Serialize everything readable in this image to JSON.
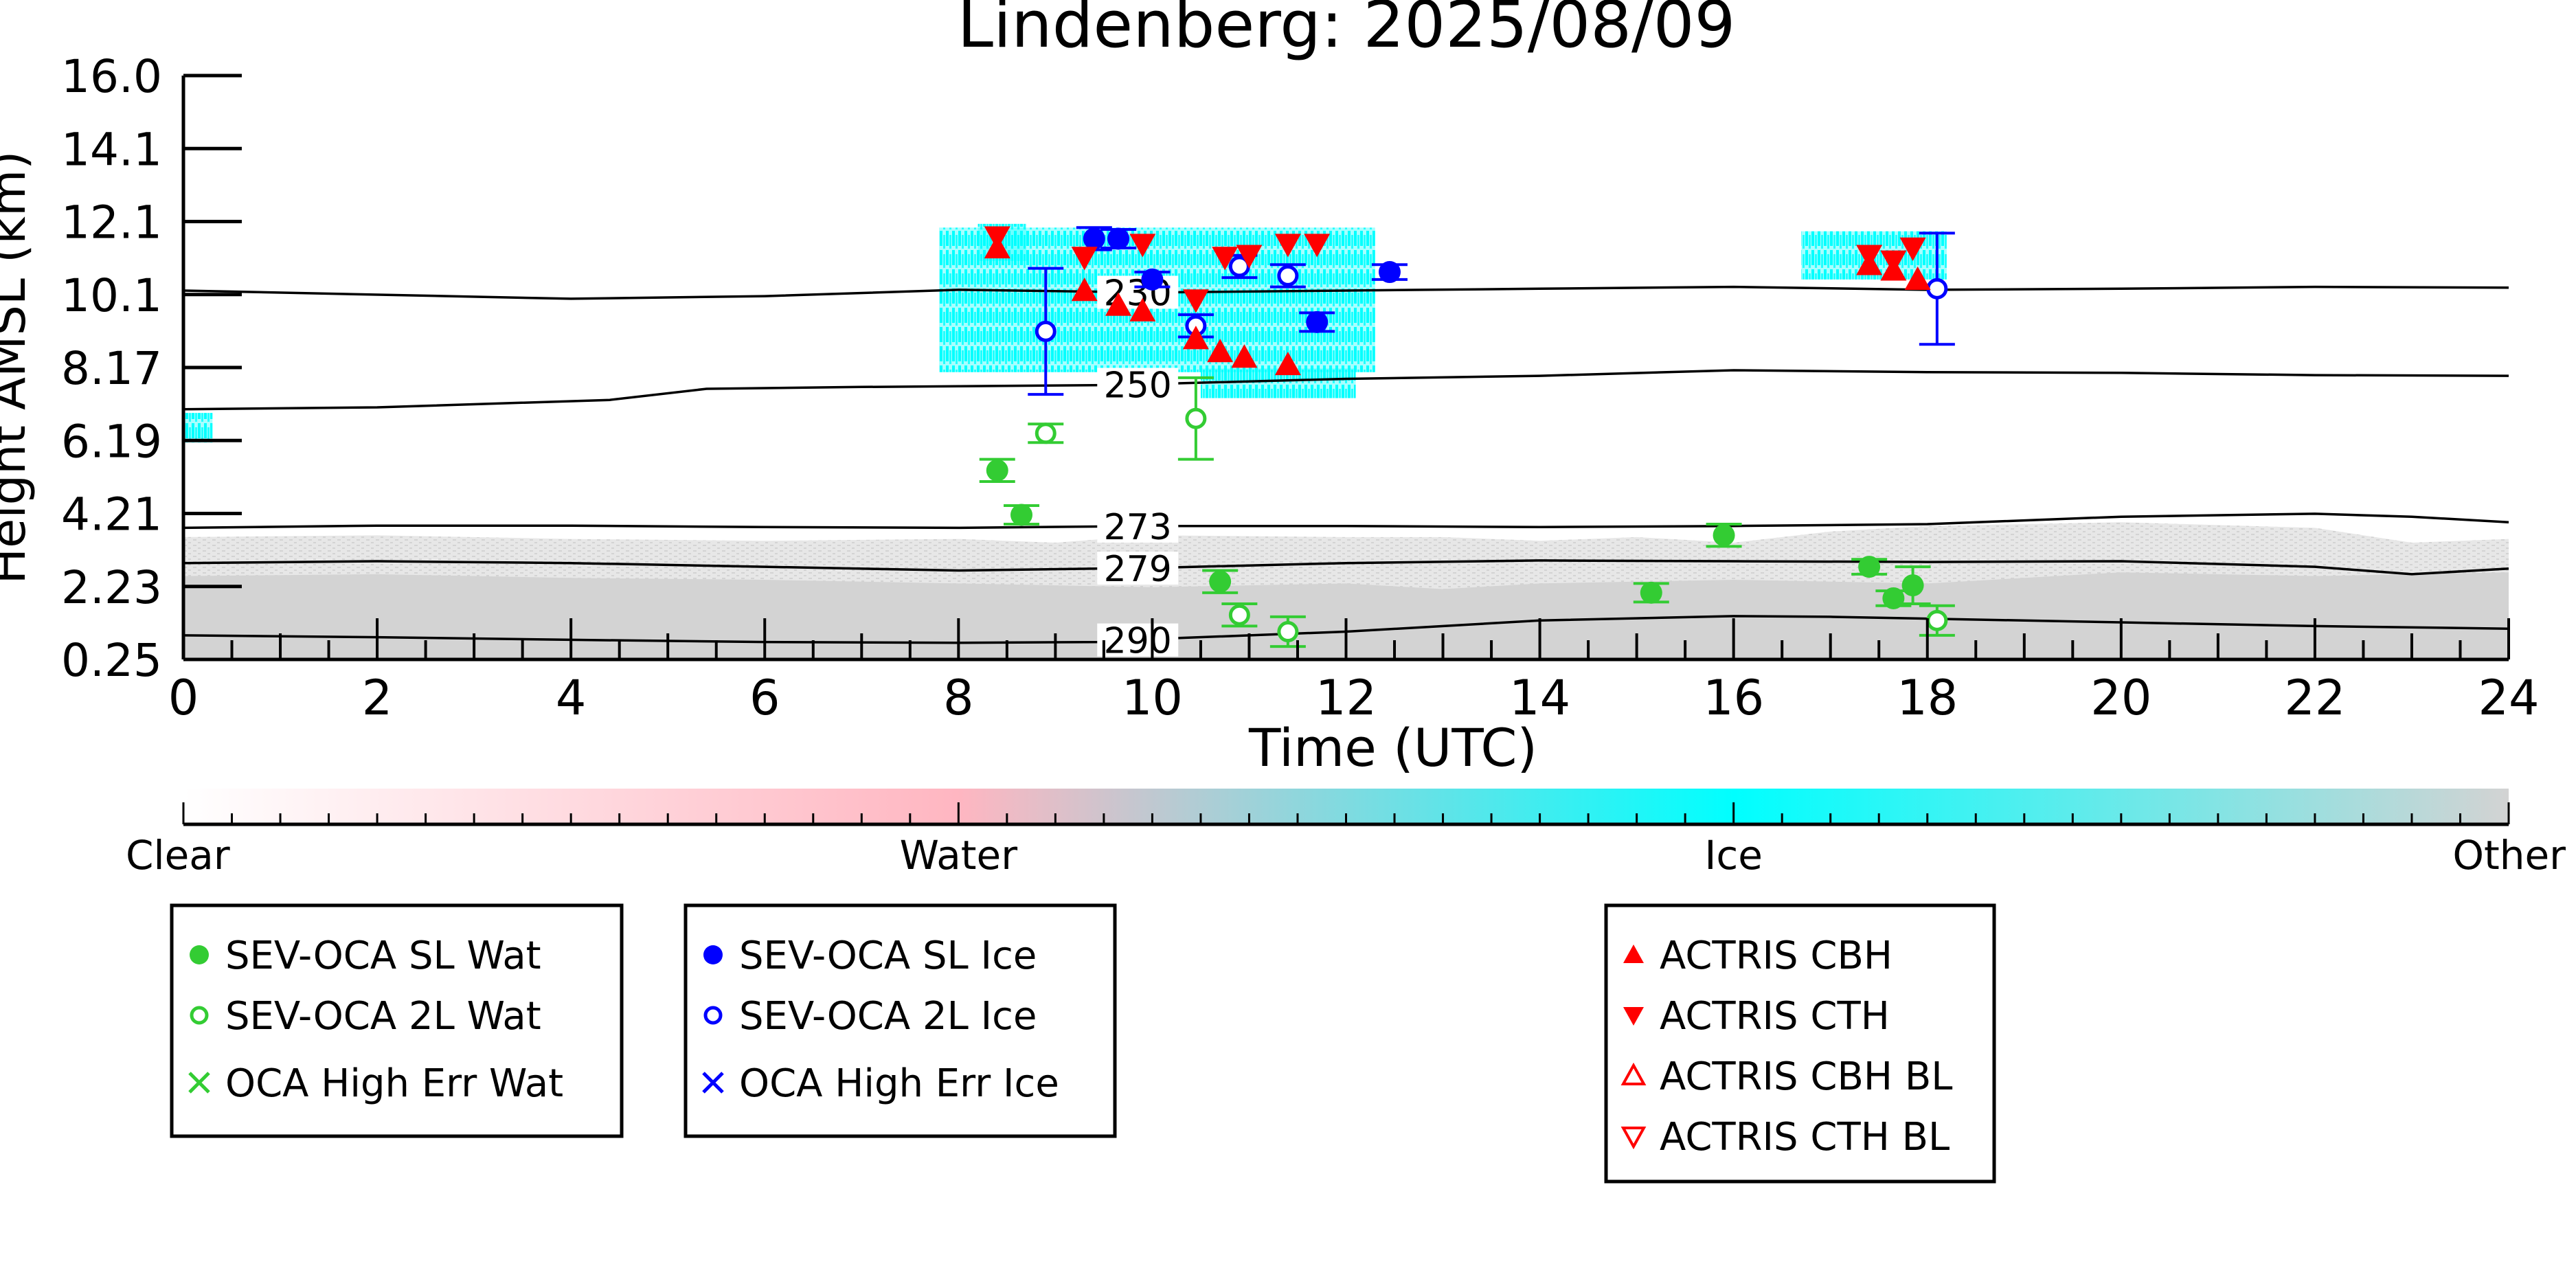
{
  "chart_data": {
    "type": "scatter",
    "title": "Lindenberg: 2025/08/09",
    "xlabel": "Time (UTC)",
    "ylabel": "Height AMSL (km)",
    "xlim": [
      0,
      24
    ],
    "ylim": [
      0.25,
      16.0
    ],
    "x_ticks": [
      0,
      2,
      4,
      6,
      8,
      10,
      12,
      14,
      16,
      18,
      20,
      22,
      24
    ],
    "y_ticks": [
      "0.25",
      "2.23",
      "4.21",
      "6.19",
      "8.17",
      "10.1",
      "12.1",
      "14.1",
      "16.0"
    ],
    "grid": false,
    "colorbar": {
      "labels": [
        "Clear",
        "Water",
        "Ice",
        "Other"
      ],
      "colors": [
        "#ffffff",
        "#ffb6c1",
        "#00ffff",
        "#d3d3d3"
      ]
    },
    "isotherms": [
      {
        "label": "230",
        "label_x": 9.85,
        "points": [
          [
            0,
            10.2
          ],
          [
            4,
            9.98
          ],
          [
            6,
            10.05
          ],
          [
            8,
            10.22
          ],
          [
            10,
            10.15
          ],
          [
            12,
            10.2
          ],
          [
            14,
            10.25
          ],
          [
            16,
            10.3
          ],
          [
            18,
            10.22
          ],
          [
            20,
            10.25
          ],
          [
            22,
            10.3
          ],
          [
            24,
            10.28
          ]
        ]
      },
      {
        "label": "250",
        "label_x": 9.85,
        "points": [
          [
            0,
            7.0
          ],
          [
            2,
            7.05
          ],
          [
            4.4,
            7.25
          ],
          [
            5.4,
            7.55
          ],
          [
            7,
            7.6
          ],
          [
            8,
            7.62
          ],
          [
            9.5,
            7.65
          ],
          [
            10,
            7.68
          ],
          [
            12,
            7.82
          ],
          [
            14,
            7.9
          ],
          [
            16,
            8.05
          ],
          [
            18,
            8.0
          ],
          [
            20,
            7.98
          ],
          [
            22,
            7.92
          ],
          [
            24,
            7.9
          ]
        ]
      },
      {
        "label": "273",
        "label_x": 9.85,
        "points": [
          [
            0,
            3.8
          ],
          [
            2,
            3.86
          ],
          [
            4,
            3.86
          ],
          [
            6,
            3.82
          ],
          [
            8,
            3.8
          ],
          [
            10,
            3.85
          ],
          [
            12,
            3.85
          ],
          [
            14,
            3.82
          ],
          [
            16,
            3.85
          ],
          [
            18,
            3.9
          ],
          [
            20,
            4.1
          ],
          [
            22,
            4.18
          ],
          [
            23,
            4.1
          ],
          [
            24,
            3.95
          ]
        ]
      },
      {
        "label": "279",
        "label_x": 9.85,
        "points": [
          [
            0,
            2.85
          ],
          [
            2,
            2.9
          ],
          [
            4,
            2.85
          ],
          [
            6,
            2.75
          ],
          [
            8,
            2.65
          ],
          [
            10,
            2.72
          ],
          [
            12,
            2.85
          ],
          [
            14,
            2.92
          ],
          [
            16,
            2.9
          ],
          [
            18,
            2.88
          ],
          [
            20,
            2.9
          ],
          [
            22,
            2.75
          ],
          [
            23,
            2.55
          ],
          [
            24,
            2.7
          ]
        ]
      },
      {
        "label": "290",
        "label_x": 9.85,
        "points": [
          [
            0,
            0.9
          ],
          [
            2,
            0.85
          ],
          [
            4,
            0.78
          ],
          [
            6,
            0.72
          ],
          [
            8,
            0.7
          ],
          [
            9.5,
            0.72
          ],
          [
            10,
            0.8
          ],
          [
            12,
            1.0
          ],
          [
            14,
            1.3
          ],
          [
            16,
            1.42
          ],
          [
            17,
            1.4
          ],
          [
            18,
            1.35
          ],
          [
            20,
            1.25
          ],
          [
            22,
            1.15
          ],
          [
            24,
            1.08
          ]
        ]
      }
    ],
    "series": [
      {
        "name": "SEV-OCA SL Wat",
        "color": "#33cc33",
        "marker": "filled-circle",
        "points": [
          [
            8.4,
            5.35,
            0.3
          ],
          [
            8.65,
            4.15,
            0.25
          ],
          [
            10.7,
            2.35,
            0.3
          ],
          [
            15.15,
            2.05,
            0.25
          ],
          [
            15.9,
            3.6,
            0.3
          ],
          [
            17.4,
            2.75,
            0.2
          ],
          [
            17.65,
            1.9,
            0.2
          ],
          [
            17.85,
            2.25,
            0.5
          ]
        ]
      },
      {
        "name": "SEV-OCA 2L Wat",
        "color": "#33cc33",
        "marker": "open-circle",
        "points": [
          [
            8.9,
            6.35,
            0.25
          ],
          [
            10.45,
            6.75,
            1.1
          ],
          [
            10.9,
            1.45,
            0.3
          ],
          [
            11.4,
            1.0,
            0.4
          ],
          [
            18.1,
            1.3,
            0.4
          ]
        ]
      },
      {
        "name": "OCA High Err Wat",
        "color": "#33cc33",
        "marker": "x",
        "points": []
      },
      {
        "name": "SEV-OCA SL Ice",
        "color": "#0000ff",
        "marker": "filled-circle",
        "points": [
          [
            9.4,
            11.6,
            0.3
          ],
          [
            9.65,
            11.6,
            0.25
          ],
          [
            10.0,
            10.5,
            0.2
          ],
          [
            11.7,
            9.35,
            0.25
          ],
          [
            12.45,
            10.7,
            0.2
          ]
        ]
      },
      {
        "name": "SEV-OCA 2L Ice",
        "color": "#0000ff",
        "marker": "open-circle",
        "points": [
          [
            8.9,
            9.1,
            1.7
          ],
          [
            10.45,
            9.25,
            0.3
          ],
          [
            10.9,
            10.85,
            0.3
          ],
          [
            11.4,
            10.6,
            0.3
          ],
          [
            18.1,
            10.25,
            1.5
          ]
        ]
      },
      {
        "name": "OCA High Err Ice",
        "color": "#0000ff",
        "marker": "x",
        "points": []
      },
      {
        "name": "ACTRIS CBH",
        "color": "#ff0000",
        "marker": "triangle-up",
        "points": [
          [
            8.4,
            11.35
          ],
          [
            9.3,
            10.2
          ],
          [
            9.65,
            9.8
          ],
          [
            9.9,
            9.65
          ],
          [
            10.45,
            8.9
          ],
          [
            10.7,
            8.55
          ],
          [
            10.95,
            8.4
          ],
          [
            11.4,
            8.2
          ],
          [
            17.4,
            10.9
          ],
          [
            17.65,
            10.75
          ],
          [
            17.9,
            10.5
          ]
        ]
      },
      {
        "name": "ACTRIS CTH",
        "color": "#ff0000",
        "marker": "triangle-down",
        "points": [
          [
            8.4,
            11.65
          ],
          [
            9.3,
            11.1
          ],
          [
            9.9,
            11.45
          ],
          [
            10.45,
            9.95
          ],
          [
            10.75,
            11.1
          ],
          [
            11.0,
            11.15
          ],
          [
            11.4,
            11.45
          ],
          [
            11.7,
            11.45
          ],
          [
            17.4,
            11.15
          ],
          [
            17.65,
            11.0
          ],
          [
            17.85,
            11.35
          ]
        ]
      },
      {
        "name": "ACTRIS CBH BL",
        "color": "#ff0000",
        "marker": "open-triangle-up",
        "points": []
      },
      {
        "name": "ACTRIS CTH BL",
        "color": "#ff0000",
        "marker": "open-triangle-down",
        "points": []
      }
    ]
  }
}
